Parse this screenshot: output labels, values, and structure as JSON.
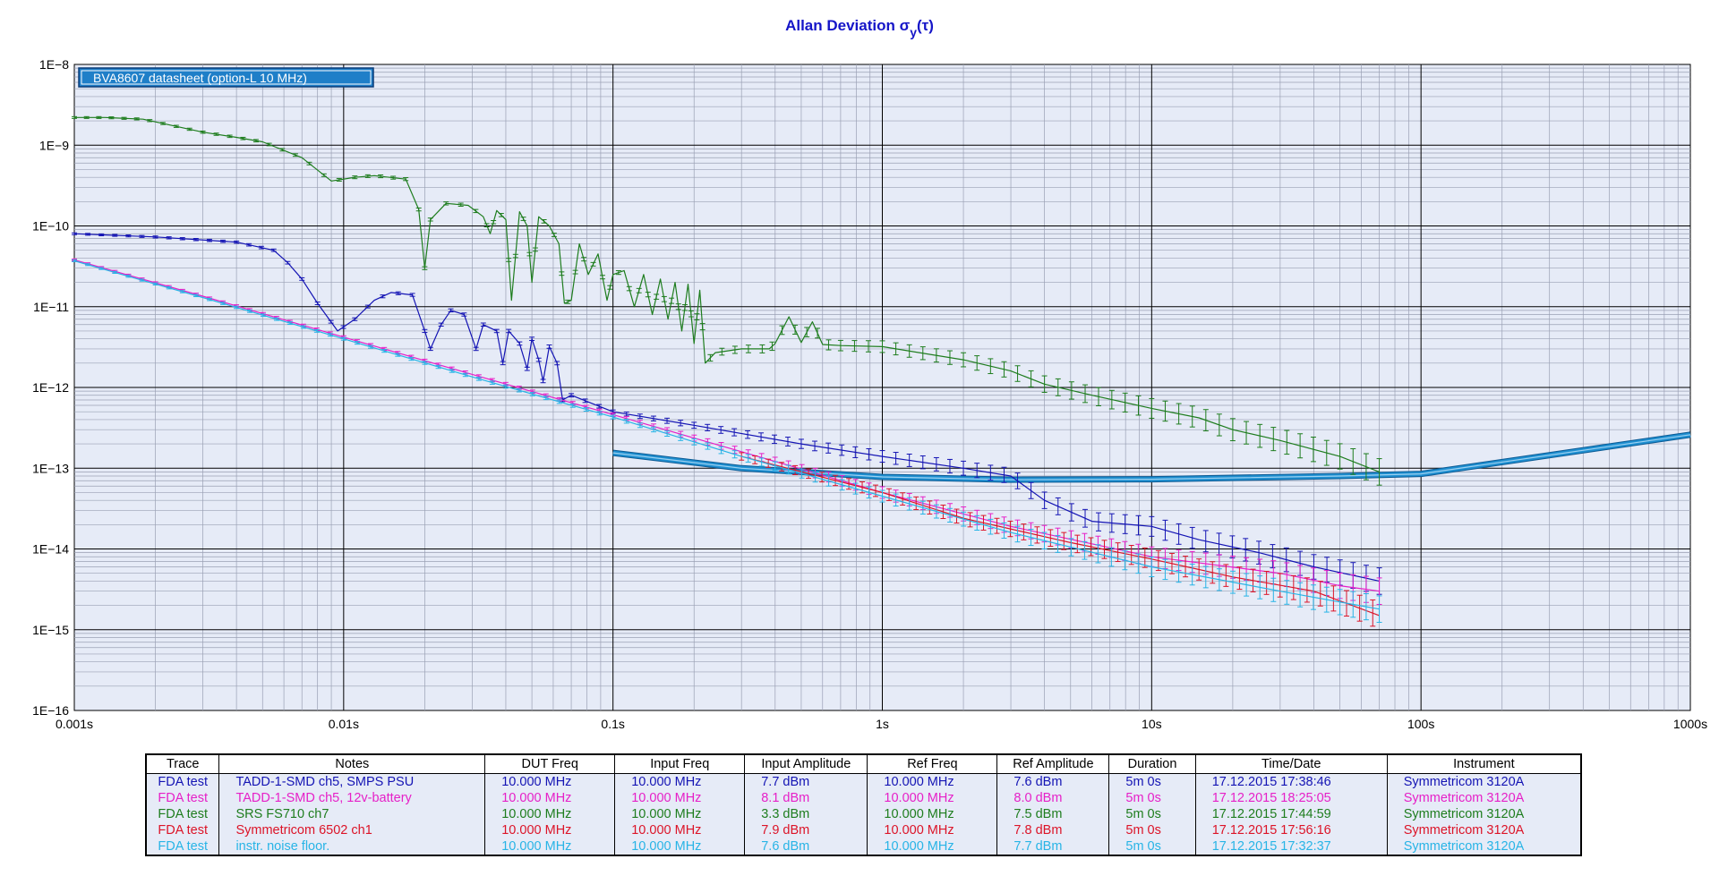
{
  "chart_data": {
    "type": "line",
    "title": "Allan Deviation σy(τ)",
    "title_main": "Allan Deviation σ",
    "title_sub": "y",
    "title_tau": "(τ)",
    "xscale": "log",
    "yscale": "log",
    "xlim": [
      0.001,
      1000
    ],
    "ylim": [
      1e-16,
      1e-08
    ],
    "x_tick_labels": [
      "0.001s",
      "0.01s",
      "0.1s",
      "1s",
      "10s",
      "100s",
      "1000s"
    ],
    "y_tick_labels": [
      "1E−8",
      "1E−9",
      "1E−10",
      "1E−11",
      "1E−12",
      "1E−13",
      "1E−14",
      "1E−15",
      "1E−16"
    ],
    "grid": true,
    "plot_background": "#e6ebf7",
    "legend_box": "BVA8607 datasheet (option-L 10 MHz)",
    "series": [
      {
        "name": "BVA8607 datasheet (option-L 10 MHz)",
        "color": "#1f8fd0",
        "band": true,
        "points": [
          [
            0.1,
            1.55e-13
          ],
          [
            0.3,
            1e-13
          ],
          [
            1,
            7.8e-14
          ],
          [
            3,
            7.2e-14
          ],
          [
            10,
            7.3e-14
          ],
          [
            50,
            8e-14
          ],
          [
            100,
            8.5e-14
          ],
          [
            1000,
            2.6e-13
          ]
        ]
      },
      {
        "name": "SRS FS710 ch7",
        "color": "#1e7d1e",
        "points": [
          [
            0.001,
            2.2e-09
          ],
          [
            0.0013,
            2.2e-09
          ],
          [
            0.0018,
            2.1e-09
          ],
          [
            0.003,
            1.45e-09
          ],
          [
            0.004,
            1.25e-09
          ],
          [
            0.005,
            1.1e-09
          ],
          [
            0.007,
            7e-10
          ],
          [
            0.009,
            3.6e-10
          ],
          [
            0.011,
            4e-10
          ],
          [
            0.013,
            4.2e-10
          ],
          [
            0.017,
            3.8e-10
          ],
          [
            0.019,
            1.6e-10
          ],
          [
            0.02,
            3e-11
          ],
          [
            0.021,
            1.2e-10
          ],
          [
            0.024,
            1.9e-10
          ],
          [
            0.029,
            1.8e-10
          ],
          [
            0.033,
            1.3e-10
          ],
          [
            0.035,
            8e-11
          ],
          [
            0.037,
            1.55e-10
          ],
          [
            0.04,
            1.2e-10
          ],
          [
            0.042,
            1.2e-11
          ],
          [
            0.045,
            1.5e-10
          ],
          [
            0.048,
            1e-10
          ],
          [
            0.05,
            2e-11
          ],
          [
            0.053,
            1.3e-10
          ],
          [
            0.058,
            1e-10
          ],
          [
            0.063,
            6e-11
          ],
          [
            0.066,
            1.1e-11
          ],
          [
            0.07,
            1.2e-11
          ],
          [
            0.075,
            6e-11
          ],
          [
            0.081,
            2.5e-11
          ],
          [
            0.088,
            4.5e-11
          ],
          [
            0.095,
            1.2e-11
          ],
          [
            0.1,
            2.5e-11
          ],
          [
            0.11,
            2.8e-11
          ],
          [
            0.12,
            1e-11
          ],
          [
            0.13,
            2.5e-11
          ],
          [
            0.14,
            8e-12
          ],
          [
            0.15,
            2.2e-11
          ],
          [
            0.16,
            7e-12
          ],
          [
            0.17,
            2e-11
          ],
          [
            0.18,
            5e-12
          ],
          [
            0.19,
            1.9e-11
          ],
          [
            0.2,
            3.5e-12
          ],
          [
            0.21,
            1.6e-11
          ],
          [
            0.22,
            2e-12
          ],
          [
            0.24,
            2.7e-12
          ],
          [
            0.3,
            3e-12
          ],
          [
            0.38,
            3e-12
          ],
          [
            0.4,
            3.5e-12
          ],
          [
            0.45,
            7.5e-12
          ],
          [
            0.5,
            3.6e-12
          ],
          [
            0.55,
            6.5e-12
          ],
          [
            0.6,
            3.4e-12
          ],
          [
            0.7,
            3.3e-12
          ],
          [
            1,
            3.2e-12
          ],
          [
            2,
            2.2e-12
          ],
          [
            3,
            1.6e-12
          ],
          [
            4,
            1.1e-12
          ],
          [
            6,
            8e-13
          ],
          [
            10,
            5.5e-13
          ],
          [
            15,
            4.2e-13
          ],
          [
            20,
            3e-13
          ],
          [
            30,
            2.2e-13
          ],
          [
            50,
            1.4e-13
          ],
          [
            70,
            9e-14
          ]
        ]
      },
      {
        "name": "TADD-1-SMD ch5, SMPS PSU",
        "color": "#1414b4",
        "points": [
          [
            0.001,
            8e-11
          ],
          [
            0.002,
            7.3e-11
          ],
          [
            0.004,
            6.3e-11
          ],
          [
            0.0055,
            5e-11
          ],
          [
            0.0062,
            3.5e-11
          ],
          [
            0.007,
            2.2e-11
          ],
          [
            0.008,
            1.1e-11
          ],
          [
            0.0095,
            5e-12
          ],
          [
            0.011,
            7e-12
          ],
          [
            0.013,
            1.2e-11
          ],
          [
            0.015,
            1.5e-11
          ],
          [
            0.018,
            1.4e-11
          ],
          [
            0.02,
            5e-12
          ],
          [
            0.021,
            3e-12
          ],
          [
            0.023,
            6e-12
          ],
          [
            0.025,
            9e-12
          ],
          [
            0.028,
            8e-12
          ],
          [
            0.031,
            3e-12
          ],
          [
            0.033,
            6e-12
          ],
          [
            0.037,
            5e-12
          ],
          [
            0.039,
            2e-12
          ],
          [
            0.041,
            5e-12
          ],
          [
            0.045,
            3.5e-12
          ],
          [
            0.048,
            1.7e-12
          ],
          [
            0.05,
            4e-12
          ],
          [
            0.053,
            2.2e-12
          ],
          [
            0.055,
            1.2e-12
          ],
          [
            0.058,
            3.2e-12
          ],
          [
            0.062,
            2e-12
          ],
          [
            0.065,
            7e-13
          ],
          [
            0.07,
            8e-13
          ],
          [
            0.1,
            5e-13
          ],
          [
            0.2,
            3.4e-13
          ],
          [
            0.5,
            2e-13
          ],
          [
            1,
            1.4e-13
          ],
          [
            2,
            1e-13
          ],
          [
            3,
            8e-14
          ],
          [
            4,
            4e-14
          ],
          [
            6,
            2.2e-14
          ],
          [
            10,
            1.9e-14
          ],
          [
            15,
            1.3e-14
          ],
          [
            25,
            9e-15
          ],
          [
            40,
            6e-15
          ],
          [
            70,
            4e-15
          ]
        ]
      },
      {
        "name": "TADD-1-SMD ch5, 12v-battery",
        "color": "#e620c8",
        "points": [
          [
            0.001,
            3.8e-11
          ],
          [
            0.003,
            1.35e-11
          ],
          [
            0.01,
            4.2e-12
          ],
          [
            0.03,
            1.45e-12
          ],
          [
            0.1,
            4.6e-13
          ],
          [
            0.3,
            1.6e-13
          ],
          [
            1,
            5e-14
          ],
          [
            3,
            1.9e-14
          ],
          [
            10,
            8e-15
          ],
          [
            30,
            5e-15
          ],
          [
            50,
            3.5e-15
          ],
          [
            70,
            3e-15
          ]
        ]
      },
      {
        "name": "Symmetricom 6502 ch1",
        "color": "#dc1428",
        "points": [
          [
            0.3,
            1.4e-13
          ],
          [
            1,
            5e-14
          ],
          [
            2,
            2.4e-14
          ],
          [
            5,
            1.2e-14
          ],
          [
            10,
            7.5e-15
          ],
          [
            20,
            4.5e-15
          ],
          [
            40,
            3e-15
          ],
          [
            70,
            1.5e-15
          ]
        ]
      },
      {
        "name": "instr. noise floor.",
        "color": "#28b4e6",
        "points": [
          [
            0.001,
            3.7e-11
          ],
          [
            0.003,
            1.3e-11
          ],
          [
            0.01,
            4e-12
          ],
          [
            0.03,
            1.35e-12
          ],
          [
            0.1,
            4.3e-13
          ],
          [
            0.3,
            1.4e-13
          ],
          [
            1,
            4.5e-14
          ],
          [
            3,
            1.6e-14
          ],
          [
            10,
            6e-15
          ],
          [
            30,
            3e-15
          ],
          [
            50,
            2.2e-15
          ],
          [
            70,
            1.8e-15
          ]
        ]
      }
    ]
  },
  "table": {
    "headers": [
      "Trace",
      "Notes",
      "DUT Freq",
      "Input Freq",
      "Input Amplitude",
      "Ref Freq",
      "Ref Amplitude",
      "Duration",
      "Time/Date",
      "Instrument"
    ],
    "rows": [
      {
        "color": "#1414b4",
        "cells": [
          "FDA test",
          "TADD-1-SMD  ch5, SMPS PSU",
          "10.000 MHz",
          "10.000 MHz",
          "7.7 dBm",
          "10.000 MHz",
          "7.6 dBm",
          "5m 0s",
          "17.12.2015 17:38:46",
          "Symmetricom 3120A"
        ]
      },
      {
        "color": "#e620c8",
        "cells": [
          "FDA test",
          "TADD-1-SMD ch5, 12v-battery",
          "10.000 MHz",
          "10.000 MHz",
          "8.1 dBm",
          "10.000 MHz",
          "8.0 dBm",
          "5m 0s",
          "17.12.2015 18:25:05",
          "Symmetricom 3120A"
        ]
      },
      {
        "color": "#1e7d1e",
        "cells": [
          "FDA test",
          "SRS FS710 ch7",
          "10.000 MHz",
          "10.000 MHz",
          "3.3 dBm",
          "10.000 MHz",
          "7.5 dBm",
          "5m 0s",
          "17.12.2015 17:44:59",
          "Symmetricom 3120A"
        ]
      },
      {
        "color": "#dc1428",
        "cells": [
          "FDA test",
          "Symmetricom 6502 ch1",
          "10.000 MHz",
          "10.000 MHz",
          "7.9 dBm",
          "10.000 MHz",
          "7.8 dBm",
          "5m 0s",
          "17.12.2015 17:56:16",
          "Symmetricom 3120A"
        ]
      },
      {
        "color": "#28b4e6",
        "cells": [
          "FDA test",
          "instr. noise floor.",
          "10.000 MHz",
          "10.000 MHz",
          "7.6 dBm",
          "10.000 MHz",
          "7.7 dBm",
          "5m 0s",
          "17.12.2015 17:32:37",
          "Symmetricom 3120A"
        ]
      }
    ]
  }
}
